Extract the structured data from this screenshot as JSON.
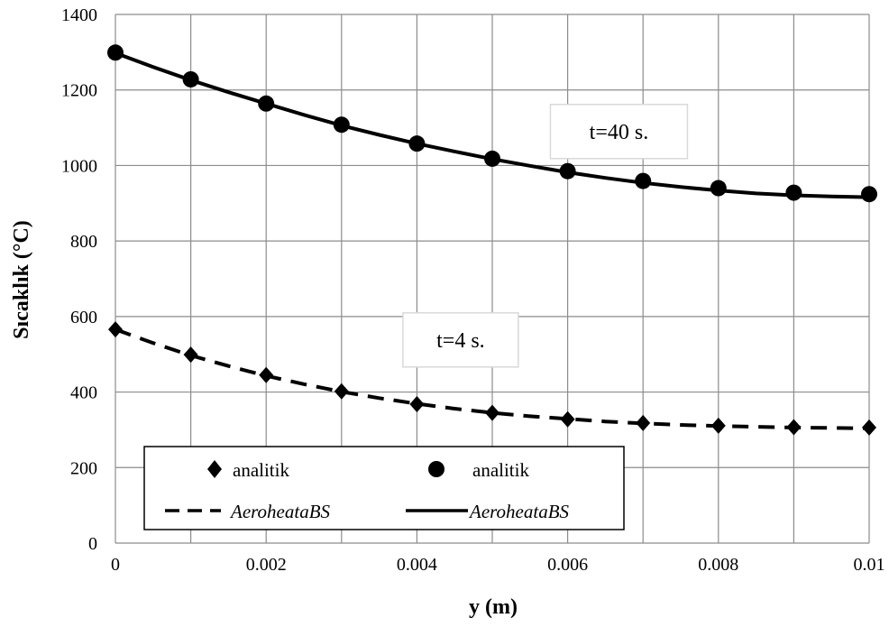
{
  "chart_data": {
    "type": "line",
    "xlabel": "y (m)",
    "ylabel": "Sıcaklık  (°C)",
    "xlim": [
      0,
      0.01
    ],
    "ylim": [
      0,
      1400
    ],
    "x_ticks": [
      "0",
      "0.002",
      "0.004",
      "0.006",
      "0.008",
      "0.01"
    ],
    "y_ticks": [
      "0",
      "200",
      "400",
      "600",
      "800",
      "1000",
      "1200",
      "1400"
    ],
    "grid": true,
    "x_grid_step": 0.001,
    "y_grid_step": 200,
    "legend_position": "bottom-left",
    "series": [
      {
        "name": "analitik",
        "kind": "markers",
        "marker": "diamond",
        "color": "#000000",
        "x": [
          0,
          0.001,
          0.002,
          0.003,
          0.004,
          0.005,
          0.006,
          0.007,
          0.008,
          0.009,
          0.01
        ],
        "y": [
          566,
          499,
          445,
          402,
          368,
          345,
          328,
          318,
          311,
          307,
          306
        ]
      },
      {
        "name": "analitik",
        "kind": "markers",
        "marker": "circle",
        "color": "#000000",
        "x": [
          0,
          0.001,
          0.002,
          0.003,
          0.004,
          0.005,
          0.006,
          0.007,
          0.008,
          0.009,
          0.01
        ],
        "y": [
          1299,
          1228,
          1164,
          1108,
          1058,
          1018,
          985,
          959,
          940,
          928,
          924
        ]
      },
      {
        "name": "AeroheataBS",
        "kind": "line",
        "dash": "dashed",
        "color": "#000000",
        "x": [
          0,
          0.0005,
          0.001,
          0.0015,
          0.002,
          0.0025,
          0.003,
          0.0035,
          0.004,
          0.0045,
          0.005,
          0.0055,
          0.006,
          0.0065,
          0.007,
          0.0075,
          0.008,
          0.0085,
          0.009,
          0.0095,
          0.01
        ],
        "y": [
          566,
          530,
          497,
          469,
          443,
          421,
          401,
          384,
          369,
          356,
          345,
          336,
          329,
          322,
          317,
          313,
          310,
          308,
          306,
          305,
          304
        ]
      },
      {
        "name": "AeroheataBS",
        "kind": "line",
        "dash": "solid",
        "color": "#000000",
        "x": [
          0,
          0.0005,
          0.001,
          0.0015,
          0.002,
          0.0025,
          0.003,
          0.0035,
          0.004,
          0.0045,
          0.005,
          0.0055,
          0.006,
          0.0065,
          0.007,
          0.0075,
          0.008,
          0.0085,
          0.009,
          0.0095,
          0.01
        ],
        "y": [
          1298,
          1261,
          1226,
          1194,
          1164,
          1134,
          1106,
          1081,
          1058,
          1037,
          1017,
          999,
          982,
          967,
          954,
          943,
          934,
          926,
          921,
          918,
          916
        ]
      }
    ],
    "annotations": [
      {
        "text": "t=40 s.",
        "x": 0.00668,
        "y": 1090
      },
      {
        "text": "t=4 s.",
        "x": 0.00458,
        "y": 538
      }
    ]
  }
}
